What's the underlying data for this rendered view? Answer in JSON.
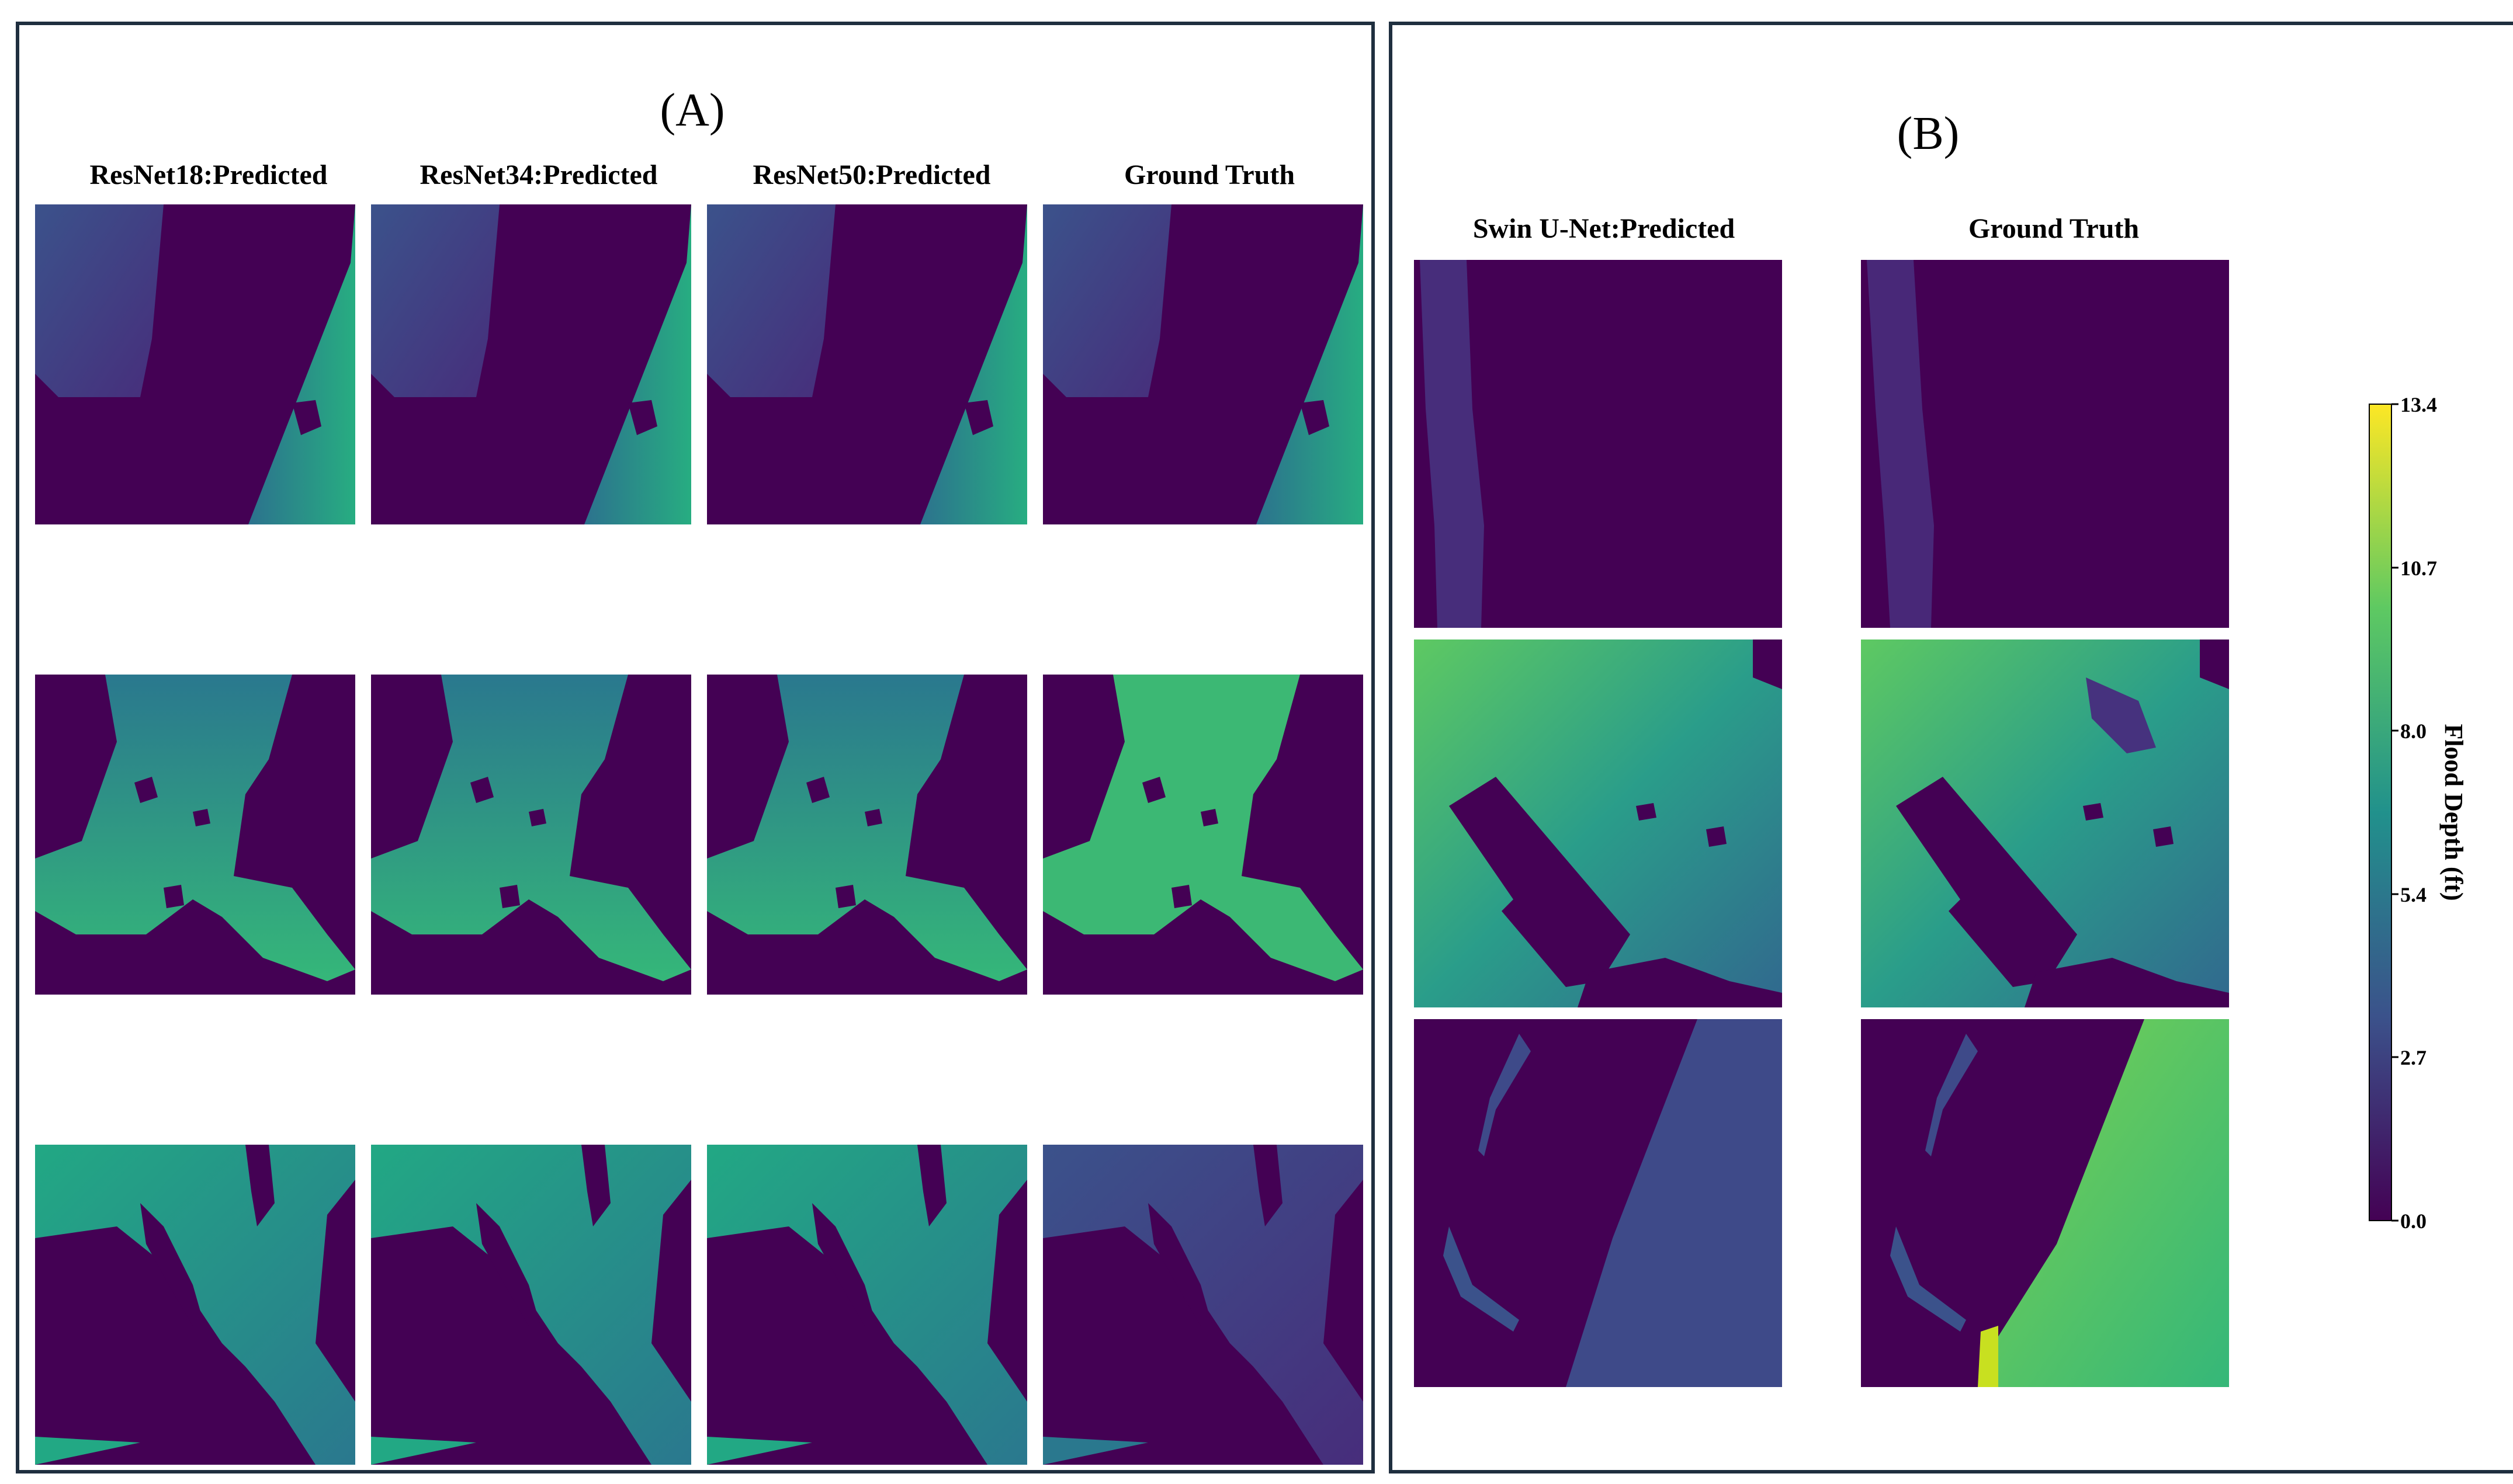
{
  "panel_a": {
    "title": "(A)",
    "columns": [
      "ResNet18:Predicted",
      "ResNet34:Predicted",
      "ResNet50:Predicted",
      "Ground Truth"
    ],
    "rows": 3
  },
  "panel_b": {
    "title": "(B)",
    "columns": [
      "Swin U-Net:Predicted",
      "Ground Truth"
    ],
    "rows": 3
  },
  "colorbar": {
    "label": "Flood Depth (ft)",
    "ticks": [
      "13.4",
      "10.7",
      "8.0",
      "5.4",
      "2.7",
      "0.0"
    ],
    "min": 0.0,
    "max": 13.4,
    "colors": [
      "#440154",
      "#3b528b",
      "#21918c",
      "#5ec962",
      "#fde725"
    ]
  }
}
